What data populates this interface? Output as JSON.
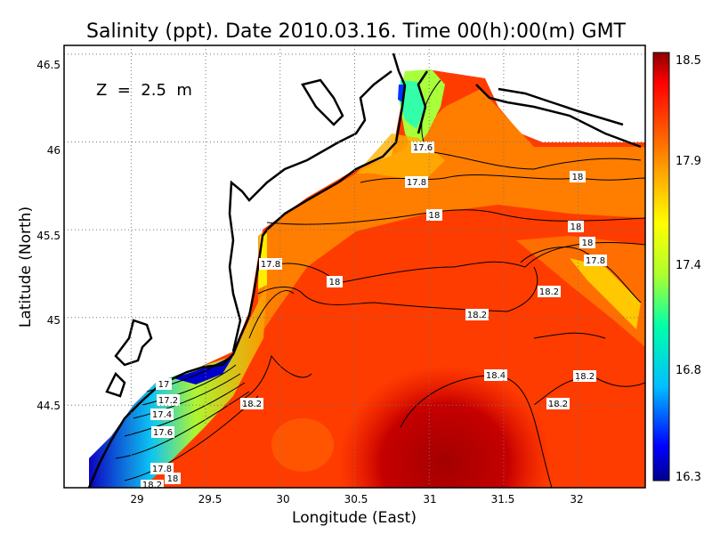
{
  "chart_data": {
    "type": "heatmap",
    "title": "Salinity (ppt). Date 2010.03.16. Time 00(h):00(m) GMT",
    "xlabel": "Longitude (East)",
    "ylabel": "Latitude (North)",
    "annotation": "Z  =  2.5  m",
    "xlim": [
      28.55,
      32.45
    ],
    "ylim": [
      44.03,
      46.55
    ],
    "x_ticks": [
      "29",
      "29.5",
      "30",
      "30.5",
      "31",
      "31.5",
      "32"
    ],
    "y_ticks": [
      "44.5",
      "45",
      "45.5",
      "46",
      "46.5"
    ],
    "grid": true,
    "colorbar": {
      "range": [
        16.3,
        18.5
      ],
      "ticks": [
        "18.5",
        "17.9",
        "17.4",
        "16.8",
        "16.3"
      ],
      "colors": [
        "#00008b",
        "#0000ff",
        "#00bfff",
        "#00ffaa",
        "#adff2f",
        "#ffff00",
        "#ffa500",
        "#ff4500",
        "#ff0000",
        "#8b0000"
      ]
    },
    "contour_labels": [
      "17.6",
      "17.8",
      "18",
      "18",
      "18",
      "17.8",
      "18",
      "18.2",
      "18.2",
      "18",
      "18.4",
      "18.2",
      "18.2",
      "18.2",
      "17.8",
      "17",
      "17.2",
      "17.4",
      "17.6",
      "17.8",
      "18",
      "18.2"
    ]
  }
}
